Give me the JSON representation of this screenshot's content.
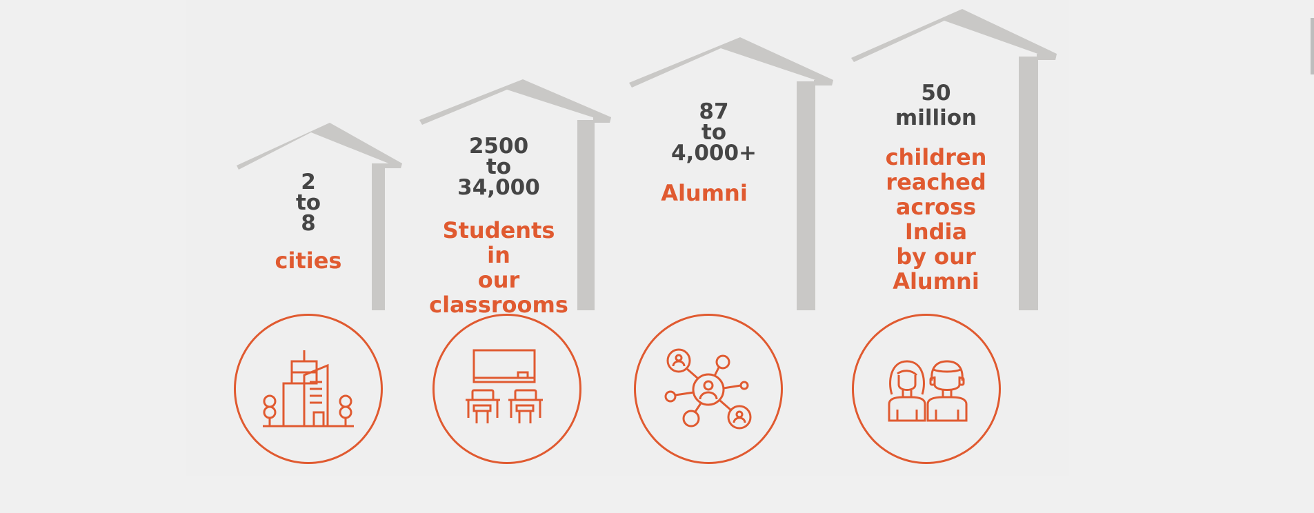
{
  "colors": {
    "accent": "#e05a30",
    "number": "#454545",
    "roof": "#c9c8c6",
    "background": "#efefef"
  },
  "stats": [
    {
      "number": "2\nto\n8",
      "label": "cities",
      "icon": "city-buildings-icon"
    },
    {
      "number": "2500\nto\n34,000",
      "label": "Students\nin\nour\nclassrooms",
      "icon": "classroom-desks-icon"
    },
    {
      "number": "87\nto\n4,000+",
      "label": "Alumni",
      "icon": "network-people-icon"
    },
    {
      "number": "50\nmillion",
      "label": "children\nreached\nacross\nIndia\nby our\nAlumni",
      "icon": "children-icon"
    }
  ]
}
